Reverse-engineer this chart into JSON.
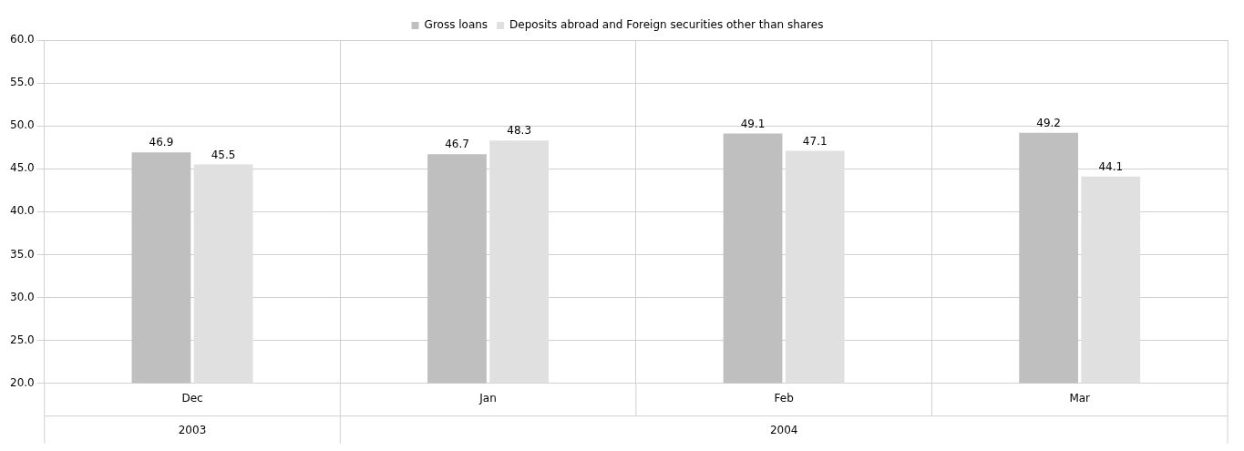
{
  "chart_data": {
    "type": "bar",
    "categories": [
      "Dec",
      "Jan",
      "Feb",
      "Mar"
    ],
    "series": [
      {
        "name": "Gross loans",
        "color": "#bfbfbf",
        "values": [
          46.9,
          46.7,
          49.1,
          49.2
        ]
      },
      {
        "name": "Deposits abroad and Foreign securities other than shares",
        "color": "#e0e0e0",
        "values": [
          45.5,
          48.3,
          47.1,
          44.1
        ]
      }
    ],
    "ylim": [
      20,
      60
    ],
    "yticks": [
      {
        "value": 20,
        "label": "20.0"
      },
      {
        "value": 25,
        "label": "25.0"
      },
      {
        "value": 30,
        "label": "30.0"
      },
      {
        "value": 35,
        "label": "35.0"
      },
      {
        "value": 40,
        "label": "40.0"
      },
      {
        "value": 45,
        "label": "45.0"
      },
      {
        "value": 50,
        "label": "50.0"
      },
      {
        "value": 55,
        "label": "55.0"
      },
      {
        "value": 60,
        "label": "60.0"
      }
    ],
    "annotations": [
      "2003",
      "2004"
    ],
    "data_labels": true,
    "grid": true,
    "legend": "top"
  }
}
